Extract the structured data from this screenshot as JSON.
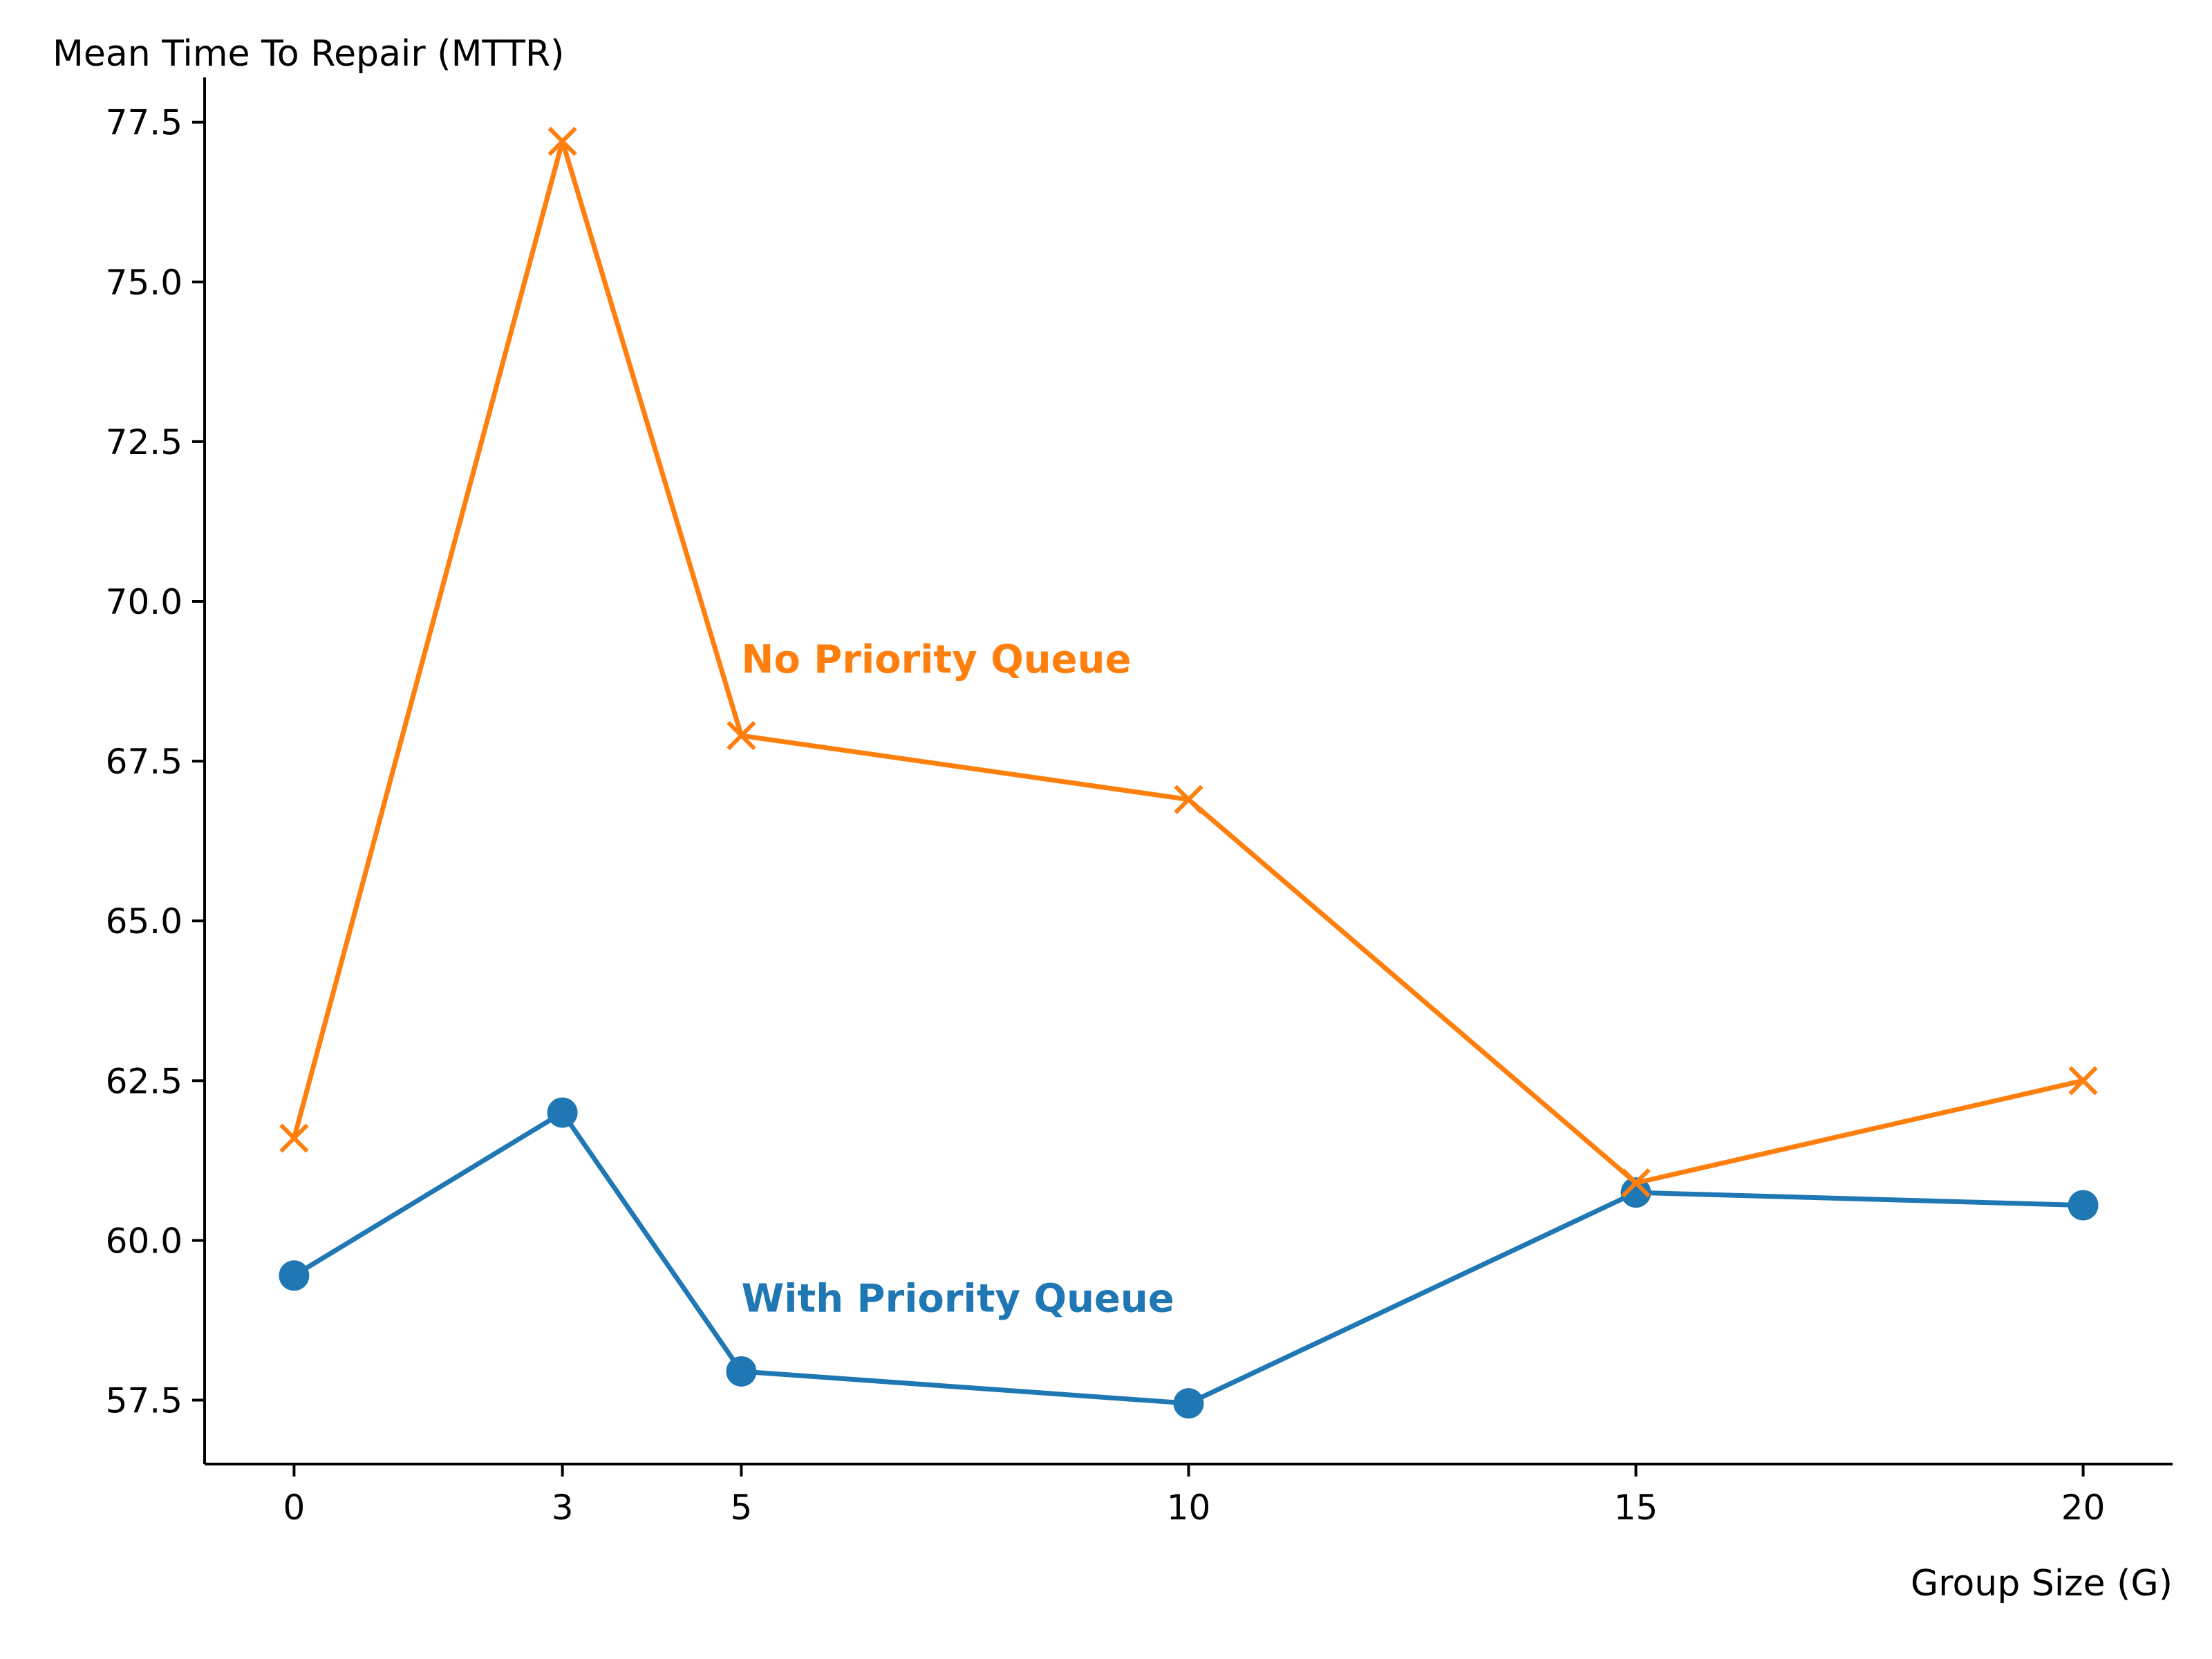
{
  "chart_data": {
    "type": "line",
    "title": "",
    "xlabel": "Group Size (G)",
    "ylabel": "Mean Time To Repair (MTTR)",
    "x": [
      0,
      3,
      5,
      10,
      15,
      20
    ],
    "xticks": [
      "0",
      "3",
      "5",
      "10",
      "15",
      "20"
    ],
    "yticks": [
      "57.5",
      "60.0",
      "62.5",
      "65.0",
      "67.5",
      "70.0",
      "72.5",
      "75.0",
      "77.5"
    ],
    "xlim": [
      -1,
      21
    ],
    "ylim": [
      56.5,
      78.2
    ],
    "grid": false,
    "legend": "none",
    "series": [
      {
        "name": "With Priority Queue",
        "values": [
          59.45,
          62.0,
          57.95,
          57.45,
          60.75,
          60.55
        ],
        "color": "#1f77b4",
        "marker": "circle"
      },
      {
        "name": "No Priority Queue",
        "values": [
          61.6,
          77.2,
          67.9,
          66.9,
          60.9,
          62.5
        ],
        "color": "#ff7f0e",
        "marker": "x"
      }
    ],
    "annotations": [
      {
        "text": "No Priority Queue",
        "series": 1,
        "x": 5,
        "y": 69.1,
        "color": "#ff7f0e"
      },
      {
        "text": "With Priority Queue",
        "series": 0,
        "x": 5,
        "y": 59.1,
        "color": "#1f77b4"
      }
    ]
  }
}
